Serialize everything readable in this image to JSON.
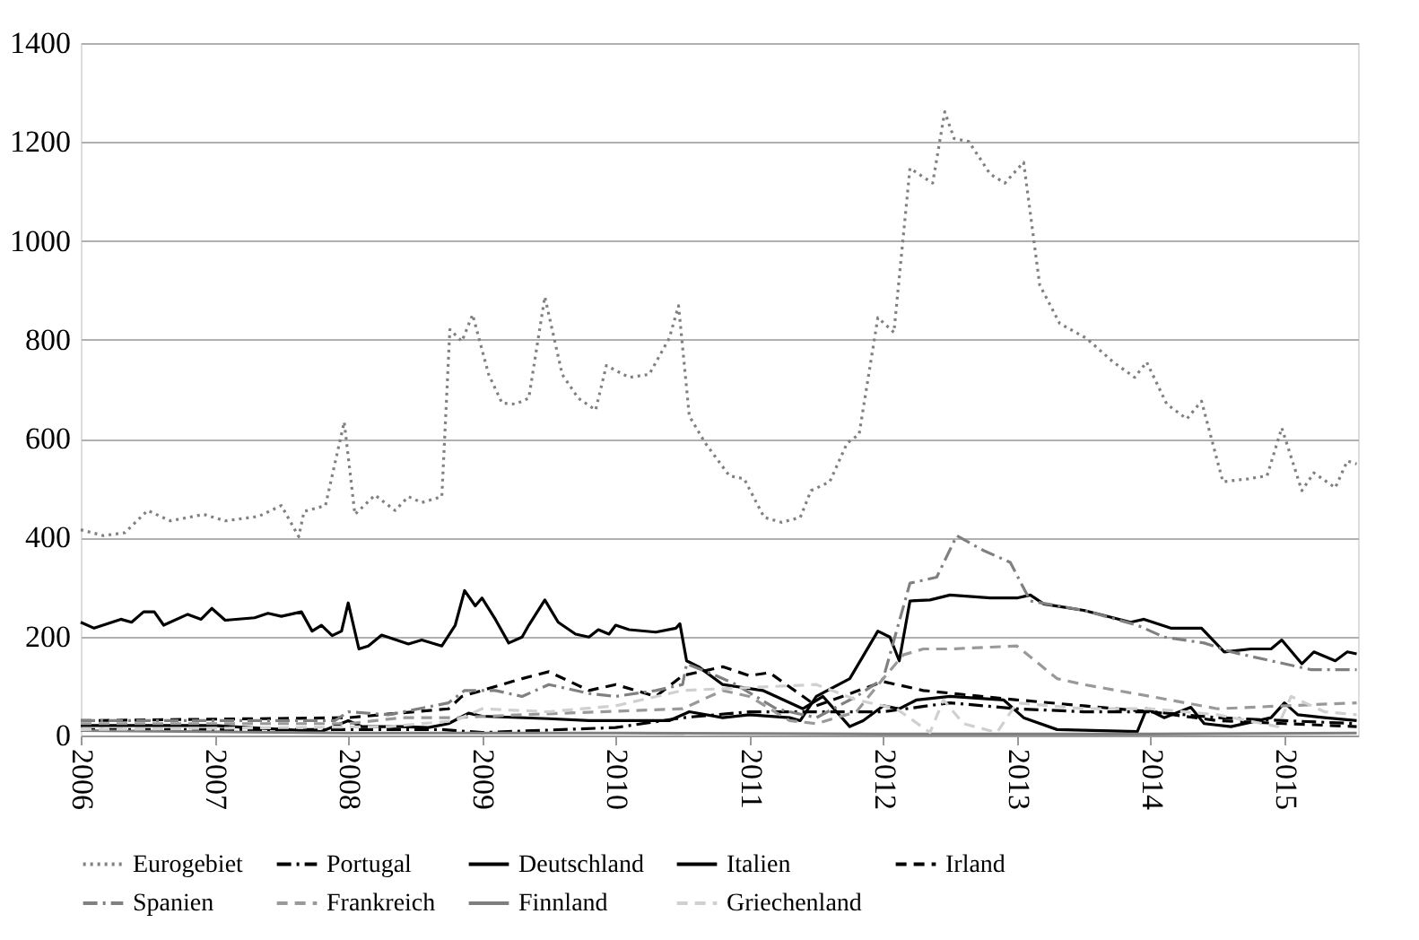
{
  "chart_data": {
    "type": "line",
    "xlim": [
      2006,
      2015.55
    ],
    "xticks": [
      2006,
      2007,
      2008,
      2009,
      2010,
      2011,
      2012,
      2013,
      2014,
      2015
    ],
    "ylim": [
      0,
      1400
    ],
    "yticks": [
      0,
      200,
      400,
      600,
      800,
      1000,
      1200,
      1400
    ],
    "grid": "y",
    "legend": "bottom",
    "marker": "none",
    "series": [
      {
        "name": "Eurogebiet",
        "color": "#808080",
        "line_style": "dotted",
        "x": [
          2006.0,
          2006.17,
          2006.33,
          2006.5,
          2006.67,
          2006.92,
          2007.08,
          2007.33,
          2007.5,
          2007.63,
          2007.67,
          2007.83,
          2007.97,
          2008.05,
          2008.2,
          2008.35,
          2008.45,
          2008.55,
          2008.7,
          2008.76,
          2008.85,
          2008.93,
          2009.05,
          2009.15,
          2009.25,
          2009.35,
          2009.47,
          2009.6,
          2009.72,
          2009.85,
          2009.93,
          2010.1,
          2010.25,
          2010.4,
          2010.47,
          2010.55,
          2010.67,
          2010.85,
          2010.96,
          2011.11,
          2011.24,
          2011.38,
          2011.46,
          2011.6,
          2011.73,
          2011.82,
          2011.96,
          2012.08,
          2012.2,
          2012.3,
          2012.37,
          2012.46,
          2012.53,
          2012.64,
          2012.8,
          2012.91,
          2013.05,
          2013.17,
          2013.32,
          2013.52,
          2013.72,
          2013.88,
          2013.97,
          2014.12,
          2014.27,
          2014.38,
          2014.54,
          2014.73,
          2014.87,
          2014.98,
          2015.13,
          2015.22,
          2015.38,
          2015.47,
          2015.54
        ],
        "values": [
          416,
          404,
          410,
          455,
          434,
          447,
          434,
          443,
          465,
          402,
          453,
          465,
          634,
          447,
          486,
          455,
          483,
          471,
          483,
          821,
          797,
          851,
          730,
          672,
          670,
          682,
          887,
          730,
          682,
          658,
          748,
          724,
          730,
          803,
          869,
          646,
          591,
          525,
          519,
          441,
          431,
          441,
          495,
          513,
          591,
          609,
          845,
          815,
          1147,
          1129,
          1117,
          1261,
          1207,
          1201,
          1135,
          1117,
          1159,
          911,
          833,
          803,
          755,
          724,
          755,
          670,
          640,
          676,
          513,
          519,
          525,
          622,
          495,
          531,
          501,
          555,
          549
        ]
      },
      {
        "name": "Portugal",
        "color": "#000000",
        "line_style": "dashdot",
        "x": [
          2006.0,
          2007.0,
          2008.0,
          2008.7,
          2009.0,
          2010.0,
          2010.5,
          2011.0,
          2011.5,
          2012.0,
          2012.5,
          2013.0,
          2013.5,
          2014.0,
          2014.5,
          2015.0,
          2015.54
        ],
        "values": [
          12,
          12,
          12,
          12,
          6,
          16,
          36,
          48,
          48,
          48,
          66,
          54,
          48,
          48,
          36,
          30,
          24
        ]
      },
      {
        "name": "Deutschland",
        "color": "#000000",
        "line_style": "solid",
        "x": [
          2006.0,
          2006.1,
          2006.3,
          2006.38,
          2006.47,
          2006.55,
          2006.62,
          2006.8,
          2006.9,
          2006.98,
          2007.08,
          2007.3,
          2007.4,
          2007.5,
          2007.65,
          2007.73,
          2007.8,
          2007.88,
          2007.95,
          2008.0,
          2008.08,
          2008.15,
          2008.25,
          2008.45,
          2008.55,
          2008.7,
          2008.8,
          2008.87,
          2008.95,
          2009.0,
          2009.1,
          2009.2,
          2009.3,
          2009.35,
          2009.47,
          2009.57,
          2009.7,
          2009.8,
          2009.87,
          2009.95,
          2010.0,
          2010.1,
          2010.3,
          2010.45,
          2010.48,
          2010.53,
          2010.62,
          2010.8,
          2011.1,
          2011.4,
          2011.55,
          2011.75,
          2011.85,
          2012.0,
          2012.12,
          2012.25,
          2012.5,
          2012.9,
          2013.05,
          2013.3,
          2013.9,
          2013.97,
          2014.1,
          2014.3,
          2014.4,
          2014.6,
          2014.9,
          2015.0,
          2015.1,
          2015.3,
          2015.54
        ],
        "values": [
          229,
          217,
          235,
          229,
          250,
          250,
          223,
          245,
          235,
          257,
          233,
          238,
          247,
          241,
          250,
          211,
          223,
          202,
          211,
          268,
          175,
          181,
          203,
          185,
          193,
          181,
          223,
          293,
          262,
          278,
          235,
          187,
          199,
          223,
          274,
          229,
          205,
          199,
          214,
          205,
          223,
          214,
          209,
          217,
          226,
          151,
          139,
          103,
          91,
          54,
          79,
          18,
          30,
          60,
          54,
          72,
          79,
          72,
          36,
          12,
          8,
          54,
          36,
          57,
          24,
          18,
          36,
          66,
          42,
          36,
          30
        ]
      },
      {
        "name": "Italien",
        "color": "#000000",
        "line_style": "solid",
        "x": [
          2006.0,
          2007.0,
          2007.8,
          2008.0,
          2008.1,
          2008.4,
          2008.6,
          2008.75,
          2008.9,
          2009.0,
          2009.5,
          2009.8,
          2010.4,
          2010.55,
          2010.8,
          2011.0,
          2011.3,
          2011.38,
          2011.5,
          2011.75,
          2011.96,
          2012.05,
          2012.12,
          2012.2,
          2012.35,
          2012.5,
          2012.8,
          2013.0,
          2013.1,
          2013.2,
          2013.5,
          2013.85,
          2013.95,
          2014.15,
          2014.38,
          2014.55,
          2014.75,
          2014.9,
          2014.98,
          2015.13,
          2015.22,
          2015.38,
          2015.47,
          2015.54
        ],
        "values": [
          20,
          20,
          8,
          30,
          18,
          18,
          16,
          24,
          45,
          39,
          34,
          30,
          30,
          48,
          36,
          42,
          36,
          30,
          79,
          115,
          211,
          199,
          151,
          272,
          274,
          284,
          278,
          278,
          284,
          266,
          253,
          229,
          235,
          217,
          217,
          169,
          175,
          175,
          193,
          145,
          169,
          151,
          169,
          165
        ]
      },
      {
        "name": "Irland",
        "color": "#000000",
        "line_style": "dashed",
        "x": [
          2006.0,
          2008.0,
          2008.5,
          2008.75,
          2008.85,
          2009.3,
          2009.5,
          2009.8,
          2010.0,
          2010.3,
          2010.5,
          2010.8,
          2011.0,
          2011.15,
          2011.5,
          2012.0,
          2012.3,
          2013.0,
          2013.5,
          2014.0,
          2014.5,
          2015.0,
          2015.54
        ],
        "values": [
          30,
          36,
          48,
          54,
          79,
          115,
          129,
          91,
          103,
          79,
          121,
          139,
          121,
          127,
          60,
          109,
          91,
          72,
          60,
          48,
          30,
          24,
          18
        ]
      },
      {
        "name": "Spanien",
        "color": "#808080",
        "line_style": "dashdot",
        "x": [
          2006.0,
          2007.9,
          2008.0,
          2008.3,
          2008.75,
          2008.87,
          2009.1,
          2009.3,
          2009.5,
          2009.8,
          2010.0,
          2010.3,
          2010.5,
          2010.53,
          2010.75,
          2010.9,
          2011.2,
          2011.5,
          2011.8,
          2012.0,
          2012.2,
          2012.4,
          2012.55,
          2012.75,
          2012.95,
          2013.1,
          2013.5,
          2013.9,
          2014.1,
          2014.4,
          2014.6,
          2014.9,
          2015.2,
          2015.54
        ],
        "values": [
          30,
          30,
          48,
          42,
          66,
          91,
          91,
          79,
          103,
          85,
          79,
          91,
          103,
          145,
          121,
          103,
          54,
          36,
          79,
          115,
          308,
          320,
          404,
          374,
          350,
          272,
          253,
          223,
          199,
          187,
          169,
          151,
          133,
          133
        ]
      },
      {
        "name": "Frankreich",
        "color": "#999999",
        "line_style": "dashed",
        "x": [
          2006.0,
          2008.0,
          2008.4,
          2008.8,
          2009.3,
          2010.5,
          2010.8,
          2011.0,
          2011.3,
          2011.5,
          2011.8,
          2012.0,
          2012.15,
          2012.3,
          2012.5,
          2013.0,
          2013.3,
          2013.5,
          2014.0,
          2014.5,
          2015.0,
          2015.54
        ],
        "values": [
          24,
          24,
          36,
          36,
          42,
          54,
          91,
          79,
          30,
          24,
          48,
          115,
          163,
          175,
          175,
          181,
          115,
          103,
          79,
          54,
          60,
          66
        ]
      },
      {
        "name": "Finnland",
        "color": "#7f7f7f",
        "line_style": "solid",
        "x": [
          2006.0,
          2008.0,
          2010.0,
          2012.0,
          2014.0,
          2015.54
        ],
        "values": [
          10,
          5,
          5,
          3,
          3,
          5
        ]
      },
      {
        "name": "Griechenland",
        "color": "#d0d0d0",
        "line_style": "dashed",
        "x": [
          2006.0,
          2008.3,
          2008.8,
          2009.0,
          2009.5,
          2010.0,
          2010.5,
          2011.0,
          2011.5,
          2011.8,
          2012.1,
          2012.35,
          2012.45,
          2012.6,
          2012.85,
          2013.0,
          2013.5,
          2014.0,
          2014.5,
          2014.95,
          2015.05,
          2015.3,
          2015.54
        ],
        "values": [
          12,
          18,
          30,
          54,
          48,
          60,
          91,
          97,
          103,
          72,
          54,
          6,
          72,
          24,
          6,
          66,
          54,
          54,
          42,
          18,
          79,
          48,
          42
        ]
      }
    ]
  }
}
